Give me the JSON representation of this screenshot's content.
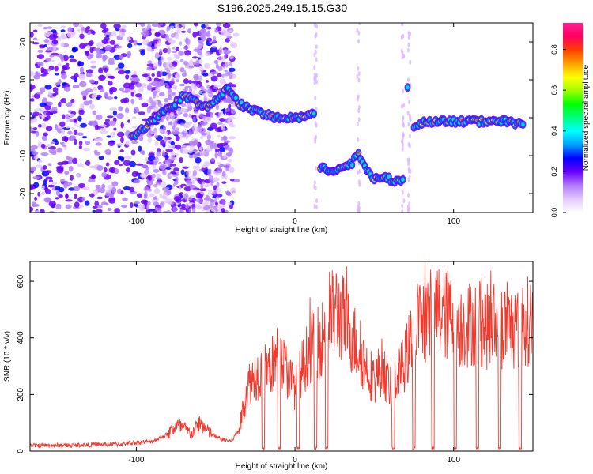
{
  "page": {
    "title": "S196.2025.249.15.15.G30"
  },
  "chart_data": [
    {
      "type": "heatmap",
      "title": "S196.2025.249.15.15.G30",
      "xlabel": "Height of straight line (km)",
      "ylabel": "Frequency (Hz)",
      "xlim": [
        -167,
        150
      ],
      "ylim": [
        -25,
        25
      ],
      "xticks": [
        -100,
        0,
        100
      ],
      "yticks": [
        -20,
        -10,
        0,
        10,
        20
      ],
      "colorbar": {
        "label": "Normalized spectral amplitude",
        "range": [
          0,
          0.93
        ],
        "ticks": [
          0.0,
          0.2,
          0.4,
          0.6,
          0.8
        ],
        "colors": [
          "#ffffff",
          "#e4c8ff",
          "#b07cff",
          "#6a00ff",
          "#0000ff",
          "#00a0ff",
          "#00ffff",
          "#00ff80",
          "#00ff00",
          "#a0ff00",
          "#ffff00",
          "#ffa000",
          "#ff4000",
          "#ff0060",
          "#ff2090"
        ]
      },
      "ridge": [
        {
          "x": -103,
          "y": -5
        },
        {
          "x": -93,
          "y": -2
        },
        {
          "x": -85,
          "y": 1
        },
        {
          "x": -78,
          "y": 3
        },
        {
          "x": -70,
          "y": 6
        },
        {
          "x": -62,
          "y": 4
        },
        {
          "x": -55,
          "y": 3
        },
        {
          "x": -48,
          "y": 5
        },
        {
          "x": -42,
          "y": 8
        },
        {
          "x": -36,
          "y": 4
        },
        {
          "x": -28,
          "y": 2
        },
        {
          "x": -20,
          "y": 1
        },
        {
          "x": -12,
          "y": 0
        },
        {
          "x": -4,
          "y": 0
        },
        {
          "x": 5,
          "y": 0
        },
        {
          "x": 12,
          "y": 1
        },
        {
          "x": 16,
          "y": -13
        },
        {
          "x": 22,
          "y": -14
        },
        {
          "x": 30,
          "y": -13
        },
        {
          "x": 36,
          "y": -12
        },
        {
          "x": 40,
          "y": -9
        },
        {
          "x": 44,
          "y": -13
        },
        {
          "x": 50,
          "y": -16
        },
        {
          "x": 58,
          "y": -16
        },
        {
          "x": 64,
          "y": -17
        },
        {
          "x": 68,
          "y": -16
        },
        {
          "x": 71,
          "y": 8
        },
        {
          "x": 75,
          "y": -2
        },
        {
          "x": 85,
          "y": -1
        },
        {
          "x": 95,
          "y": -1
        },
        {
          "x": 105,
          "y": -1
        },
        {
          "x": 115,
          "y": -1
        },
        {
          "x": 125,
          "y": -1
        },
        {
          "x": 135,
          "y": -1
        },
        {
          "x": 145,
          "y": -2
        }
      ]
    },
    {
      "type": "line",
      "xlabel": "Height of straight line (km)",
      "ylabel": "SNR (10 * v/v)",
      "xlim": [
        -167,
        150
      ],
      "ylim": [
        0,
        670
      ],
      "xticks": [
        -100,
        0,
        100
      ],
      "yticks": [
        0,
        200,
        400,
        600
      ],
      "series": [
        {
          "name": "SNR",
          "color": "#f03a2e",
          "x": [
            -167,
            -150,
            -130,
            -110,
            -100,
            -90,
            -80,
            -75,
            -70,
            -65,
            -60,
            -55,
            -50,
            -45,
            -40,
            -35,
            -30,
            -25,
            -20,
            -15,
            -10,
            -5,
            0,
            5,
            10,
            15,
            20,
            25,
            30,
            35,
            40,
            45,
            50,
            55,
            60,
            65,
            70,
            75,
            80,
            85,
            90,
            95,
            100,
            105,
            110,
            115,
            120,
            125,
            130,
            135,
            140,
            145,
            150
          ],
          "y": [
            20,
            20,
            22,
            25,
            30,
            35,
            60,
            90,
            80,
            60,
            100,
            70,
            50,
            40,
            35,
            80,
            230,
            270,
            280,
            300,
            340,
            280,
            220,
            300,
            370,
            380,
            430,
            500,
            470,
            420,
            360,
            300,
            250,
            300,
            220,
            260,
            330,
            420,
            470,
            480,
            500,
            480,
            470,
            440,
            450,
            460,
            440,
            430,
            440,
            440,
            430,
            460,
            460
          ]
        }
      ],
      "dips": [
        -20,
        -10,
        2,
        13,
        20,
        62,
        75,
        87,
        101,
        115,
        129,
        142
      ]
    }
  ]
}
